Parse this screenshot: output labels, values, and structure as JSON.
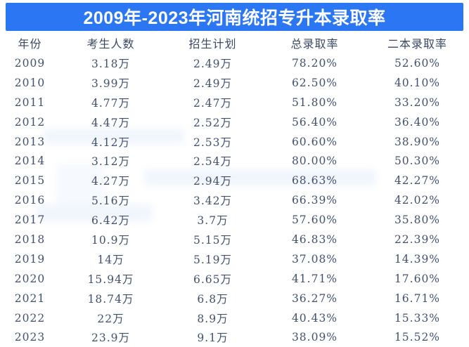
{
  "title": "2009年-2023年河南统招专升本录取率",
  "colors": {
    "title_bg": "#2a76f3",
    "title_text": "#ffffff",
    "table_text": "#41506e"
  },
  "chart_data": {
    "type": "table",
    "title": "2009年-2023年河南统招专升本录取率",
    "headers": [
      "年份",
      "考生人数",
      "招生计划",
      "总录取率",
      "二本录取率"
    ],
    "rows": [
      [
        "2009",
        "3.18万",
        "2.49万",
        "78.20%",
        "52.60%"
      ],
      [
        "2010",
        "3.99万",
        "2.49万",
        "62.50%",
        "40.10%"
      ],
      [
        "2011",
        "4.77万",
        "2.47万",
        "51.80%",
        "33.20%"
      ],
      [
        "2012",
        "4.47万",
        "2.52万",
        "56.40%",
        "36.40%"
      ],
      [
        "2013",
        "4.12万",
        "2.53万",
        "60.60%",
        "38.90%"
      ],
      [
        "2014",
        "3.12万",
        "2.54万",
        "80.00%",
        "50.30%"
      ],
      [
        "2015",
        "4.27万",
        "2.94万",
        "68.63%",
        "42.27%"
      ],
      [
        "2016",
        "5.16万",
        "3.42万",
        "66.39%",
        "42.02%"
      ],
      [
        "2017",
        "6.42万",
        "3.7万",
        "57.60%",
        "35.80%"
      ],
      [
        "2018",
        "10.9万",
        "5.15万",
        "46.83%",
        "22.39%"
      ],
      [
        "2019",
        "14万",
        "5.19万",
        "37.08%",
        "14.39%"
      ],
      [
        "2020",
        "15.94万",
        "6.65万",
        "41.71%",
        "17.60%"
      ],
      [
        "2021",
        "18.74万",
        "6.8万",
        "36.27%",
        "16.71%"
      ],
      [
        "2022",
        "22万",
        "8.9万",
        "40.43%",
        "15.33%"
      ],
      [
        "2023",
        "23.9万",
        "9.1万",
        "38.09%",
        "15.52%"
      ]
    ]
  }
}
